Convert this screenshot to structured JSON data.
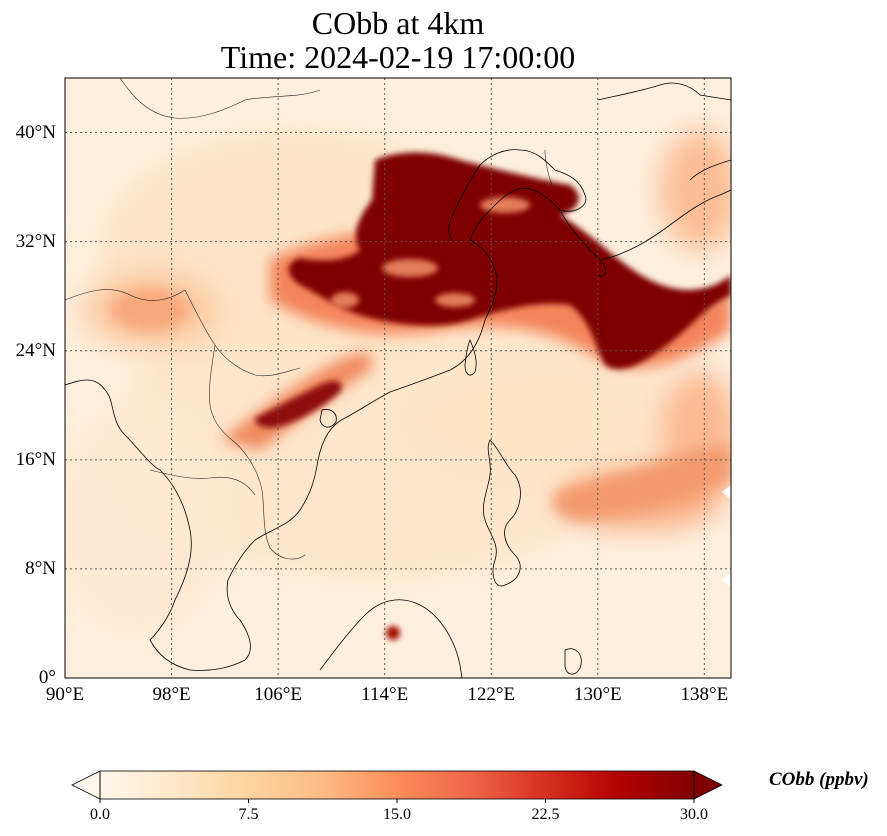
{
  "title": {
    "line1": "CObb at 4km",
    "line2": "Time: 2024-02-19 17:00:00"
  },
  "map": {
    "projection": "PlateCarree",
    "lon_range": [
      90,
      140
    ],
    "lat_range": [
      0,
      44
    ],
    "lon_ticks": [
      "90°E",
      "98°E",
      "106°E",
      "114°E",
      "122°E",
      "130°E",
      "138°E"
    ],
    "lat_ticks": [
      "0°",
      "8°N",
      "16°N",
      "24°N",
      "32°N",
      "40°N"
    ],
    "lon_tick_values": [
      90,
      98,
      106,
      114,
      122,
      130,
      138
    ],
    "lat_tick_values": [
      0,
      8,
      16,
      24,
      32,
      40
    ],
    "gridlines": true,
    "coastlines": true,
    "borders": true,
    "field_variable": "CObb",
    "field_units": "ppbv",
    "plumes": [
      {
        "region": "East China Sea / Yellow Sea corridor",
        "peak_ppbv": 30
      },
      {
        "region": "Central China",
        "peak_ppbv": 30
      },
      {
        "region": "Northern Vietnam / Gulf of Tonkin",
        "peak_ppbv": 30
      },
      {
        "region": "Borneo point source",
        "peak_ppbv": 30
      },
      {
        "region": "Western Pacific east of Philippines",
        "peak_ppbv": 15
      }
    ]
  },
  "colorbar": {
    "label": "CObb (ppbv)",
    "min": 0.0,
    "max": 30.0,
    "extend": "both",
    "ticks": [
      "0.0",
      "7.5",
      "15.0",
      "22.5",
      "30.0"
    ],
    "tick_values": [
      0,
      7.5,
      15,
      22.5,
      30
    ],
    "colormap": "OrRd",
    "colors": [
      "#fff7ec",
      "#fee8c8",
      "#fdd49e",
      "#fdbb84",
      "#fc8d59",
      "#ef6548",
      "#d7301f",
      "#b30000",
      "#7f0000"
    ]
  }
}
